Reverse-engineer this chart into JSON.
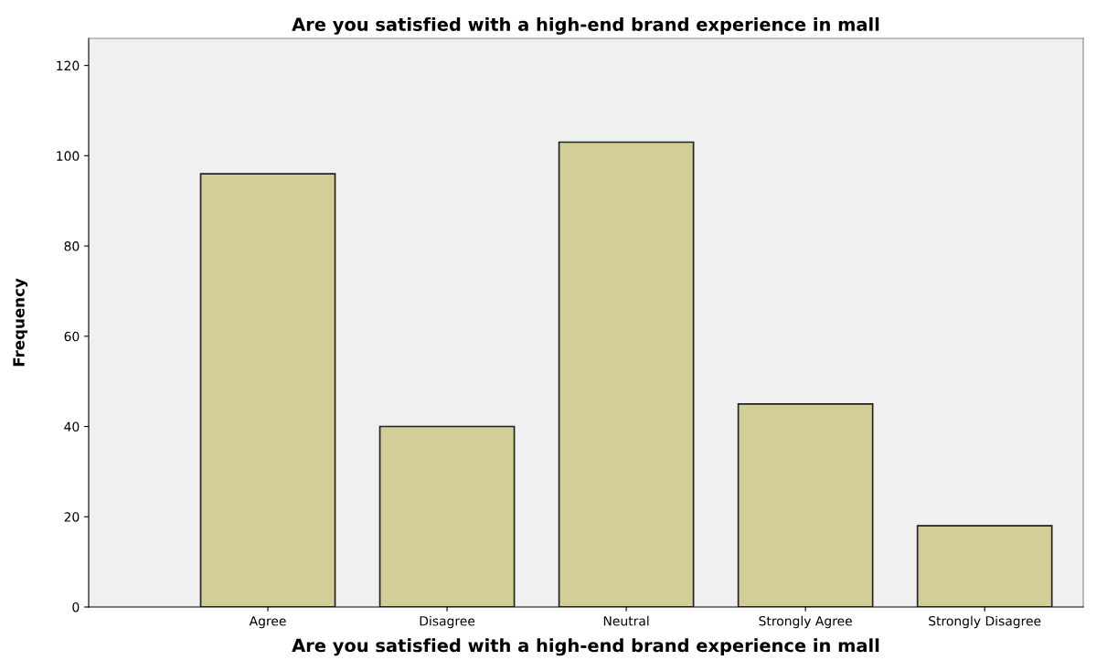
{
  "chart_data": {
    "type": "bar",
    "title": "Are you satisfied with a high-end brand experience in mall",
    "xlabel": "Are you satisfied with a high-end brand experience in mall",
    "ylabel": "Frequency",
    "categories": [
      "Agree",
      "Disagree",
      "Neutral",
      "Strongly Agree",
      "Strongly Disagree"
    ],
    "values": [
      96,
      40,
      103,
      45,
      18
    ],
    "color": "#d3ce97",
    "ylim": [
      0,
      126
    ],
    "yticks": [
      0,
      20,
      40,
      60,
      80,
      100,
      120
    ],
    "grid": false
  }
}
